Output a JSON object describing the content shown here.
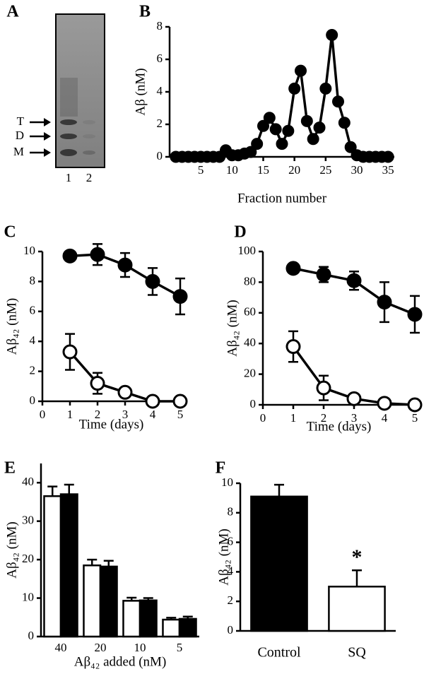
{
  "chart_data": [
    {
      "type": "gel",
      "panel": "A",
      "band_labels": [
        "T",
        "D",
        "M"
      ],
      "lanes": [
        "1",
        "2"
      ]
    },
    {
      "type": "line",
      "panel": "B",
      "y_label": "Aβ (nM)",
      "x_label": "Fraction number",
      "x": [
        1,
        2,
        3,
        4,
        5,
        6,
        7,
        8,
        9,
        10,
        11,
        12,
        13,
        14,
        15,
        16,
        17,
        18,
        19,
        20,
        21,
        22,
        23,
        24,
        25,
        26,
        27,
        28,
        29,
        30,
        31,
        32,
        33,
        34,
        35
      ],
      "series": [
        {
          "color": "#000000",
          "values": [
            0,
            0,
            0,
            0,
            0,
            0,
            0,
            0,
            0.4,
            0.1,
            0.1,
            0.2,
            0.3,
            0.8,
            1.9,
            2.4,
            1.7,
            0.8,
            1.6,
            4.2,
            5.3,
            2.2,
            1.1,
            1.8,
            4.2,
            7.5,
            3.4,
            2.1,
            0.6,
            0.1,
            0,
            0,
            0,
            0,
            0
          ]
        }
      ],
      "xlim": [
        0,
        36
      ],
      "xticks": [
        5,
        10,
        15,
        20,
        25,
        30,
        35
      ],
      "ylim": [
        0,
        8
      ],
      "yticks": [
        0,
        2,
        4,
        6,
        8
      ]
    },
    {
      "type": "line",
      "panel": "C",
      "y_label": "Aβ₄₂ (nM)",
      "x_label": "Time (days)",
      "x": [
        1,
        2,
        3,
        4,
        5
      ],
      "series": [
        {
          "color": "#000000",
          "values": [
            9.7,
            9.8,
            9.1,
            8.0,
            7.0
          ],
          "errors": [
            null,
            0.7,
            0.8,
            0.9,
            1.2
          ]
        },
        {
          "color": "#ffffff",
          "values": [
            3.3,
            1.2,
            0.6,
            0,
            0
          ],
          "errors": [
            1.2,
            0.7,
            null,
            null,
            null
          ]
        }
      ],
      "xlim": [
        0,
        5
      ],
      "xticks": [
        0,
        1,
        2,
        3,
        4,
        5
      ],
      "ylim": [
        0,
        10
      ],
      "yticks": [
        0,
        2,
        4,
        6,
        8,
        10
      ]
    },
    {
      "type": "line",
      "panel": "D",
      "y_label": "Aβ₄₂ (nM)",
      "x_label": "Time (days)",
      "x": [
        1,
        2,
        3,
        4,
        5
      ],
      "series": [
        {
          "color": "#000000",
          "values": [
            89,
            85,
            81,
            67,
            59
          ],
          "errors": [
            null,
            5,
            6,
            13,
            12
          ]
        },
        {
          "color": "#ffffff",
          "values": [
            38,
            11,
            4,
            1,
            0
          ],
          "errors": [
            10,
            8,
            null,
            null,
            null
          ]
        }
      ],
      "xlim": [
        0,
        5
      ],
      "xticks": [
        0,
        1,
        2,
        3,
        4,
        5
      ],
      "ylim": [
        0,
        100
      ],
      "yticks": [
        0,
        20,
        40,
        60,
        80,
        100
      ]
    },
    {
      "type": "bar",
      "panel": "E",
      "y_label": "Aβ₄₂ (nM)",
      "x_label": "Aβ₄₂ added (nM)",
      "categories": [
        "40",
        "20",
        "10",
        "5"
      ],
      "series": [
        {
          "color": "#ffffff",
          "values": [
            36.5,
            18.5,
            9.3,
            4.4
          ],
          "errors": [
            2.5,
            1.5,
            0.8,
            0.5
          ]
        },
        {
          "color": "#000000",
          "values": [
            37,
            18.2,
            9.4,
            4.6
          ],
          "errors": [
            2.5,
            1.5,
            0.6,
            0.6
          ]
        }
      ],
      "ylim": [
        0,
        45
      ],
      "yticks": [
        0,
        10,
        20,
        30,
        40
      ]
    },
    {
      "type": "bar",
      "panel": "F",
      "y_label": "Aβ₄₂ (nM)",
      "annotation": "*",
      "categories": [
        "Control",
        "SQ"
      ],
      "series": [
        {
          "colors": [
            "#000000",
            "#ffffff"
          ],
          "values": [
            9.1,
            3.0
          ],
          "errors": [
            0.8,
            1.1
          ]
        }
      ],
      "ylim": [
        0,
        10
      ],
      "yticks": [
        0,
        2,
        4,
        6,
        8,
        10
      ]
    }
  ]
}
